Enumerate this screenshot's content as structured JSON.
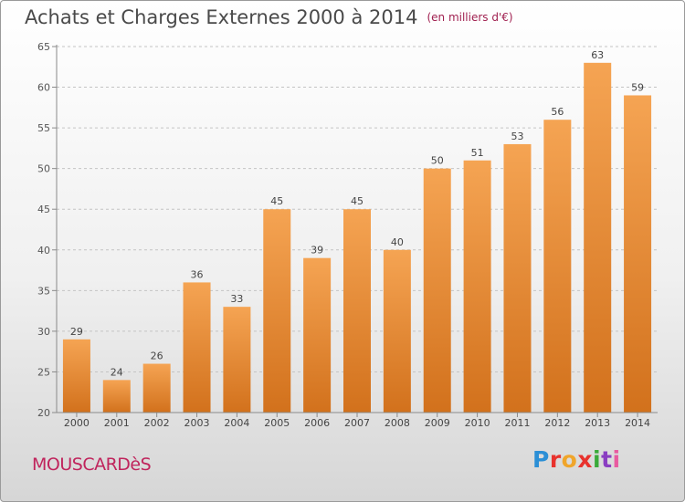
{
  "header": {
    "title": "Achats et Charges Externes 2000 à 2014",
    "unit": "(en milliers d'€)"
  },
  "footer": {
    "town": "MOUSCARDèS",
    "logo_text": "Proxiti"
  },
  "colors": {
    "bar_top": "#f5a453",
    "bar_bottom": "#d2711c",
    "axis": "#8a8a8a",
    "grid": "#c4c4c4"
  },
  "chart_data": {
    "type": "bar",
    "title": "Achats et Charges Externes 2000 à 2014",
    "subtitle": "(en milliers d'€)",
    "xlabel": "",
    "ylabel": "",
    "categories": [
      "2000",
      "2001",
      "2002",
      "2003",
      "2004",
      "2005",
      "2006",
      "2007",
      "2008",
      "2009",
      "2010",
      "2011",
      "2012",
      "2013",
      "2014"
    ],
    "values": [
      29,
      24,
      26,
      36,
      33,
      45,
      39,
      45,
      40,
      50,
      51,
      53,
      56,
      63,
      59
    ],
    "ylim": [
      20,
      65
    ],
    "yticks": [
      20,
      25,
      30,
      35,
      40,
      45,
      50,
      55,
      60,
      65
    ],
    "grid": true,
    "data_labels": true
  }
}
